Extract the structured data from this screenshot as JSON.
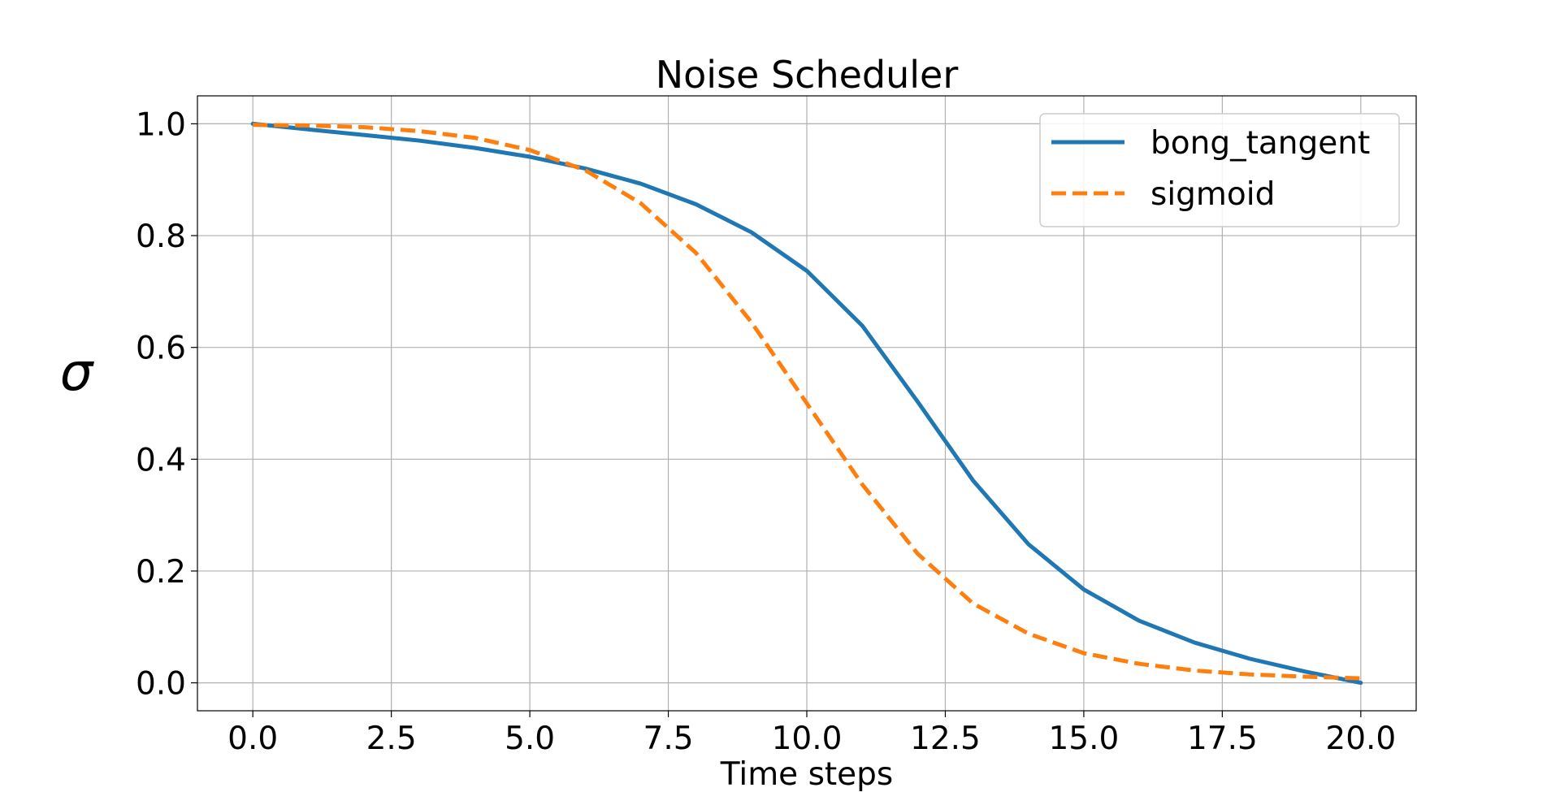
{
  "chart_data": {
    "type": "line",
    "title": "Noise Scheduler",
    "xlabel": "Time steps",
    "ylabel": "σ",
    "xlim": [
      -1.0,
      21.0
    ],
    "ylim": [
      -0.05,
      1.05
    ],
    "xticks": [
      0,
      2.5,
      5,
      7.5,
      10,
      12.5,
      15,
      17.5,
      20
    ],
    "xtick_labels": [
      "0.0",
      "2.5",
      "5.0",
      "7.5",
      "10.0",
      "12.5",
      "15.0",
      "17.5",
      "20.0"
    ],
    "yticks": [
      0,
      0.2,
      0.4,
      0.6,
      0.8,
      1.0
    ],
    "ytick_labels": [
      "0.0",
      "0.2",
      "0.4",
      "0.6",
      "0.8",
      "1.0"
    ],
    "grid": true,
    "legend_position": "top-right",
    "x": [
      0,
      1,
      2,
      3,
      4,
      5,
      6,
      7,
      8,
      9,
      10,
      11,
      12,
      13,
      14,
      15,
      16,
      17,
      18,
      19,
      20
    ],
    "series": [
      {
        "name": "bong_tangent",
        "color": "#1f77b4",
        "style": "solid",
        "values": [
          1.0,
          0.99,
          0.98,
          0.97,
          0.957,
          0.941,
          0.92,
          0.893,
          0.856,
          0.806,
          0.737,
          0.639,
          0.503,
          0.362,
          0.248,
          0.167,
          0.111,
          0.072,
          0.043,
          0.02,
          0.0
        ]
      },
      {
        "name": "sigmoid",
        "color": "#ff7f0e",
        "style": "dashed",
        "values": [
          0.998,
          0.997,
          0.994,
          0.987,
          0.975,
          0.953,
          0.917,
          0.858,
          0.769,
          0.645,
          0.5,
          0.355,
          0.231,
          0.142,
          0.088,
          0.053,
          0.034,
          0.022,
          0.015,
          0.011,
          0.008
        ]
      }
    ]
  }
}
